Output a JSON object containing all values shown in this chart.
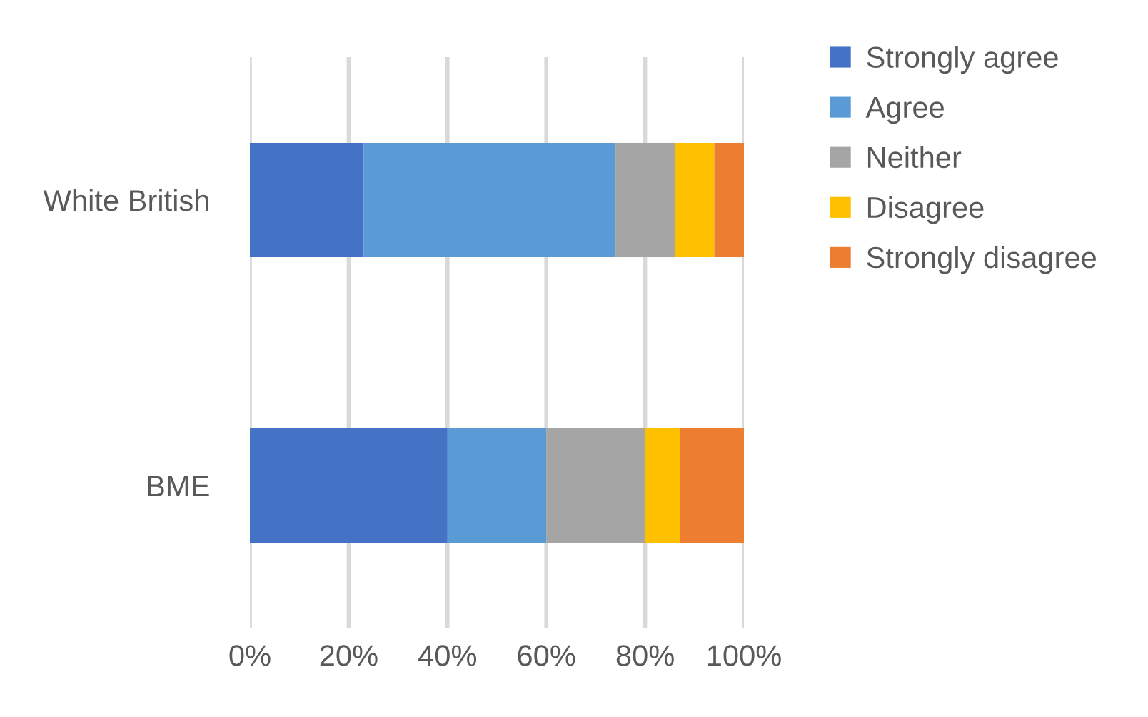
{
  "chart_data": {
    "type": "bar",
    "orientation": "horizontal",
    "stacked": true,
    "categories": [
      "White British",
      "BME"
    ],
    "series": [
      {
        "name": "Strongly agree",
        "color": "#4472c4",
        "values": [
          23,
          40
        ]
      },
      {
        "name": "Agree",
        "color": "#5b9bd5",
        "values": [
          51,
          20
        ]
      },
      {
        "name": "Neither",
        "color": "#a5a5a5",
        "values": [
          12,
          20
        ]
      },
      {
        "name": "Disagree",
        "color": "#ffc000",
        "values": [
          8,
          7
        ]
      },
      {
        "name": "Strongly disagree",
        "color": "#ed7d31",
        "values": [
          6,
          13
        ]
      }
    ],
    "xlim": [
      0,
      100
    ],
    "xticks": [
      {
        "value": 0,
        "label": "0%"
      },
      {
        "value": 20,
        "label": "20%"
      },
      {
        "value": 40,
        "label": "40%"
      },
      {
        "value": 60,
        "label": "60%"
      },
      {
        "value": 80,
        "label": "80%"
      },
      {
        "value": 100,
        "label": "100%"
      }
    ],
    "grid": "x",
    "legend": "right"
  }
}
